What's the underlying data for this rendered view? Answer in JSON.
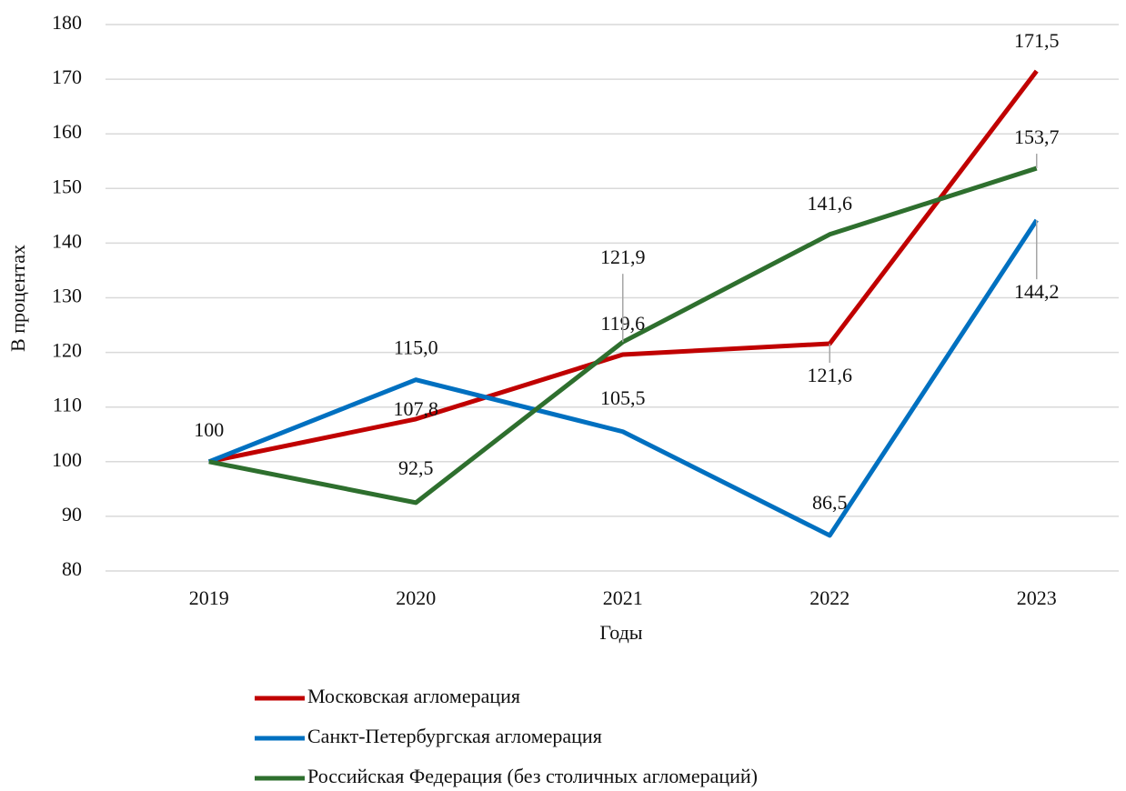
{
  "chart_data": {
    "type": "line",
    "y_label": "В процентах",
    "x_label": "Годы",
    "categories": [
      "2019",
      "2020",
      "2021",
      "2022",
      "2023"
    ],
    "series": [
      {
        "name": "Московская агломерация",
        "color": "#c00000",
        "values": [
          100,
          107.8,
          119.6,
          121.6,
          171.5
        ],
        "value_labels": [
          null,
          "107,8",
          "119,6",
          "121,6",
          "171,5"
        ]
      },
      {
        "name": "Санкт-Петербургская агломерация",
        "color": "#0070c0",
        "values": [
          100,
          115.0,
          105.5,
          86.5,
          144.2
        ],
        "value_labels": [
          null,
          "115,0",
          "105,5",
          "86,5",
          "144,2"
        ]
      },
      {
        "name": "Российская Федерация (без столичных агломераций)",
        "color": "#2e6f2e",
        "values": [
          100,
          92.5,
          121.9,
          141.6,
          153.7
        ],
        "value_labels": [
          "100",
          "92,5",
          "121,9",
          "141,6",
          "153,7"
        ]
      }
    ],
    "ylim": [
      80,
      180
    ],
    "yticks": [
      80,
      90,
      100,
      110,
      120,
      130,
      140,
      150,
      160,
      170,
      180
    ],
    "grid": true,
    "legend": "bottom"
  }
}
